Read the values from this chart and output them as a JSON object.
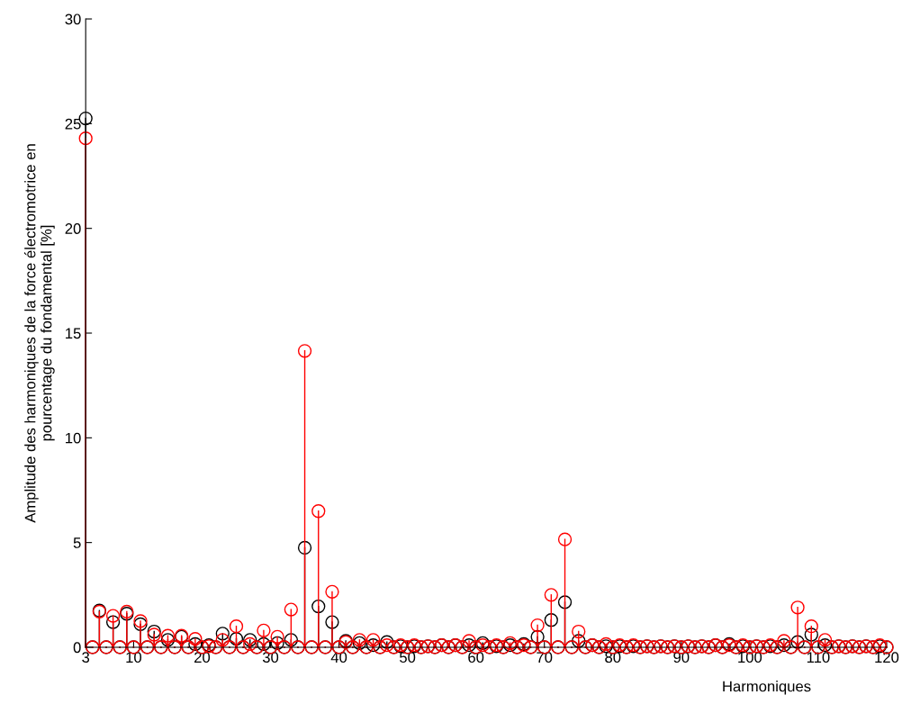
{
  "chart_data": {
    "type": "lollipop",
    "xlabel": "Harmoniques",
    "ylabel": "Amplitude des harmoniques de la force électromotrice en\npourcentage du fondamental [%]",
    "x": [
      3,
      4,
      5,
      6,
      7,
      8,
      9,
      10,
      11,
      12,
      13,
      14,
      15,
      16,
      17,
      18,
      19,
      20,
      21,
      22,
      23,
      24,
      25,
      26,
      27,
      28,
      29,
      30,
      31,
      32,
      33,
      34,
      35,
      36,
      37,
      38,
      39,
      40,
      41,
      42,
      43,
      44,
      45,
      46,
      47,
      48,
      49,
      50,
      51,
      52,
      53,
      54,
      55,
      56,
      57,
      58,
      59,
      60,
      61,
      62,
      63,
      64,
      65,
      66,
      67,
      68,
      69,
      70,
      71,
      72,
      73,
      74,
      75,
      76,
      77,
      78,
      79,
      80,
      81,
      82,
      83,
      84,
      85,
      86,
      87,
      88,
      89,
      90,
      91,
      92,
      93,
      94,
      95,
      96,
      97,
      98,
      99,
      100,
      101,
      102,
      103,
      104,
      105,
      106,
      107,
      108,
      109,
      110,
      111,
      112,
      113,
      114,
      115,
      116,
      117,
      118,
      119,
      120
    ],
    "series": [
      {
        "color": "#000000",
        "values": [
          25.25,
          0,
          1.75,
          0,
          1.2,
          0,
          1.6,
          0,
          1.1,
          0,
          0.75,
          0,
          0.35,
          0,
          0.5,
          0,
          0.15,
          0,
          0.1,
          0,
          0.65,
          0,
          0.4,
          0,
          0.35,
          0,
          0.15,
          0,
          0.2,
          0,
          0.35,
          0,
          4.75,
          0,
          1.95,
          0,
          1.2,
          0,
          0.3,
          0,
          0.2,
          0,
          0.1,
          0,
          0.25,
          0,
          0.05,
          0,
          0.05,
          0,
          0.05,
          0,
          0.1,
          0,
          0.1,
          0,
          0.1,
          0,
          0.2,
          0,
          0.05,
          0,
          0.1,
          0,
          0.15,
          0,
          0.5,
          0,
          1.3,
          0,
          2.15,
          0,
          0.3,
          0,
          0.1,
          0,
          0.05,
          0,
          0.05,
          0,
          0.05,
          0,
          0.05,
          0,
          0.05,
          0,
          0.05,
          0,
          0.05,
          0,
          0.05,
          0,
          0.1,
          0,
          0.15,
          0,
          0.05,
          0,
          0.05,
          0,
          0.05,
          0,
          0.1,
          0,
          0.25,
          0,
          0.6,
          0,
          0.1,
          0,
          0.05,
          0,
          0.05,
          0,
          0.05,
          0,
          0.05,
          0
        ]
      },
      {
        "color": "#ff0000",
        "values": [
          24.3,
          0,
          1.7,
          0,
          1.5,
          0,
          1.7,
          0,
          1.25,
          0,
          0.6,
          0,
          0.55,
          0,
          0.55,
          0,
          0.4,
          0,
          0.05,
          0,
          0.35,
          0,
          1.0,
          0,
          0.15,
          0,
          0.8,
          0,
          0.5,
          0,
          1.8,
          0,
          14.15,
          0,
          6.5,
          0,
          2.65,
          0,
          0.25,
          0,
          0.35,
          0,
          0.35,
          0,
          0.1,
          0,
          0.1,
          0,
          0.1,
          0,
          0.05,
          0,
          0.1,
          0,
          0.1,
          0,
          0.3,
          0,
          0.1,
          0,
          0.1,
          0,
          0.2,
          0,
          0.1,
          0,
          1.05,
          0,
          2.5,
          0,
          5.15,
          0,
          0.75,
          0,
          0.1,
          0,
          0.15,
          0,
          0.1,
          0,
          0.1,
          0,
          0.05,
          0,
          0.05,
          0,
          0.05,
          0,
          0.05,
          0,
          0.05,
          0,
          0.1,
          0,
          0.1,
          0,
          0.1,
          0,
          0.05,
          0,
          0.1,
          0,
          0.3,
          0,
          1.9,
          0,
          1.0,
          0,
          0.35,
          0,
          0.05,
          0,
          0.05,
          0,
          0.05,
          0,
          0.1,
          0
        ]
      }
    ],
    "xlim": [
      3,
      120
    ],
    "xticks": [
      3,
      10,
      20,
      30,
      40,
      50,
      60,
      70,
      80,
      90,
      100,
      110,
      120
    ],
    "ylim": [
      0,
      30
    ],
    "yticks": [
      0,
      5,
      10,
      15,
      20,
      25,
      30
    ],
    "marker": "circle",
    "grid": false,
    "legend": false
  }
}
